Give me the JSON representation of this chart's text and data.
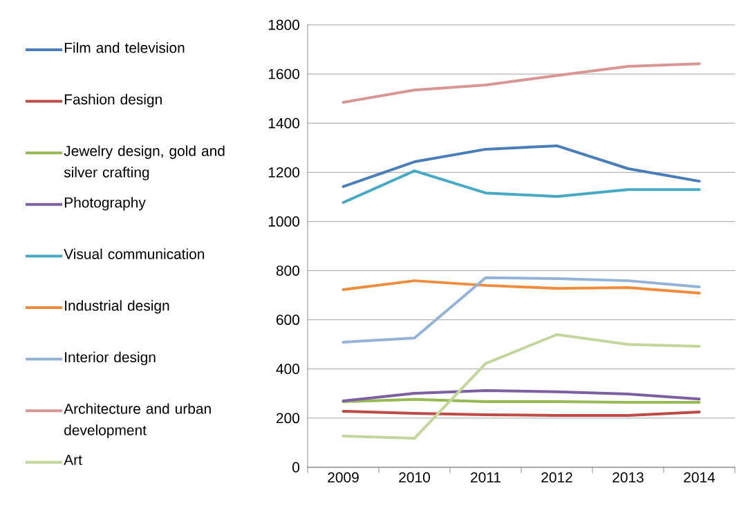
{
  "chart_data": {
    "type": "line",
    "categories": [
      "2009",
      "2010",
      "2011",
      "2012",
      "2013",
      "2014"
    ],
    "ylim": [
      0,
      1800
    ],
    "yticks": [
      0,
      200,
      400,
      600,
      800,
      1000,
      1200,
      1400,
      1600,
      1800
    ],
    "grid": "y",
    "legend": "left",
    "marker": "none",
    "series": [
      {
        "name": "Film and television",
        "color": "#4a7ebb",
        "values": [
          1142,
          1243,
          1294,
          1308,
          1215,
          1164
        ]
      },
      {
        "name": "Fashion design",
        "color": "#be4b48",
        "values": [
          228,
          219,
          214,
          211,
          211,
          225
        ]
      },
      {
        "name": "Jewelry design, gold and silver crafting",
        "color": "#98b954",
        "values": [
          267,
          276,
          267,
          267,
          264,
          264
        ]
      },
      {
        "name": "Photography",
        "color": "#7d60a0",
        "values": [
          270,
          301,
          312,
          307,
          298,
          278
        ]
      },
      {
        "name": "Visual communication",
        "color": "#46aac5",
        "values": [
          1077,
          1206,
          1116,
          1102,
          1130,
          1130
        ]
      },
      {
        "name": "Industrial design",
        "color": "#f08c3c",
        "values": [
          723,
          759,
          740,
          728,
          731,
          709
        ]
      },
      {
        "name": "Interior design",
        "color": "#95b3d7",
        "values": [
          509,
          526,
          771,
          768,
          759,
          734
        ]
      },
      {
        "name": "Architecture and urban development",
        "color": "#d99694",
        "values": [
          1485,
          1535,
          1555,
          1594,
          1631,
          1642
        ]
      },
      {
        "name": "Art",
        "color": "#c3d69b",
        "values": [
          127,
          118,
          422,
          540,
          500,
          492
        ]
      }
    ]
  }
}
